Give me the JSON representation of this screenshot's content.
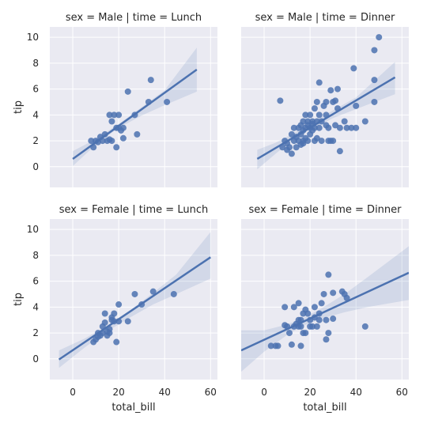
{
  "chart_data": {
    "type": "scatter",
    "xlabel": "total_bill",
    "ylabel": "tip",
    "xlim": [
      -10,
      63
    ],
    "ylim": [
      -1.6,
      10.8
    ],
    "x_ticks": [
      0,
      20,
      40,
      60
    ],
    "y_ticks": [
      0,
      2,
      4,
      6,
      8,
      10
    ],
    "grid": true,
    "color": "#4c72b0",
    "background": "#eaeaf2",
    "facets": [
      {
        "title": "sex = Male | time = Lunch",
        "fit": {
          "x0": 0,
          "y0": 0.6,
          "x1": 54,
          "y1": 7.5
        },
        "ci": {
          "lower": [
            [
              0,
              0.05
            ],
            [
              7,
              1.2
            ],
            [
              14,
              2.25
            ],
            [
              20,
              3.0
            ],
            [
              30,
              3.95
            ],
            [
              40,
              4.75
            ],
            [
              54,
              5.8
            ]
          ],
          "upper": [
            [
              0,
              1.2
            ],
            [
              7,
              1.85
            ],
            [
              14,
              2.6
            ],
            [
              20,
              3.3
            ],
            [
              30,
              4.6
            ],
            [
              40,
              5.9
            ],
            [
              54,
              9.2
            ]
          ]
        },
        "points": [
          [
            8,
            2
          ],
          [
            9,
            1.5
          ],
          [
            10,
            2
          ],
          [
            11,
            1.9
          ],
          [
            12,
            2.3
          ],
          [
            13,
            2
          ],
          [
            14,
            2.5
          ],
          [
            15,
            2
          ],
          [
            16,
            2.1
          ],
          [
            16,
            4
          ],
          [
            17,
            2
          ],
          [
            17,
            3.5
          ],
          [
            18,
            4
          ],
          [
            19,
            1.5
          ],
          [
            19,
            3
          ],
          [
            20,
            4
          ],
          [
            20,
            3
          ],
          [
            21,
            2.8
          ],
          [
            22,
            3
          ],
          [
            22,
            2.2
          ],
          [
            24,
            5.8
          ],
          [
            27,
            4
          ],
          [
            28,
            2.5
          ],
          [
            33,
            5
          ],
          [
            34,
            6.7
          ],
          [
            41,
            5
          ]
        ]
      },
      {
        "title": "sex = Male | time = Dinner",
        "fit": {
          "x0": -3,
          "y0": 0.6,
          "x1": 57,
          "y1": 6.9
        },
        "ci": {
          "lower": [
            [
              -3,
              -0.2
            ],
            [
              5,
              1.0
            ],
            [
              12,
              2.0
            ],
            [
              20,
              2.85
            ],
            [
              30,
              3.75
            ],
            [
              40,
              4.45
            ],
            [
              57,
              5.6
            ]
          ],
          "upper": [
            [
              -3,
              1.3
            ],
            [
              5,
              1.85
            ],
            [
              12,
              2.5
            ],
            [
              20,
              3.35
            ],
            [
              30,
              4.35
            ],
            [
              40,
              5.35
            ],
            [
              57,
              8.1
            ]
          ]
        },
        "points": [
          [
            7,
            5.1
          ],
          [
            8,
            1.5
          ],
          [
            9,
            2
          ],
          [
            10,
            1.3
          ],
          [
            10,
            1.8
          ],
          [
            11,
            1.5
          ],
          [
            12,
            2.5
          ],
          [
            12,
            1
          ],
          [
            13,
            2
          ],
          [
            13,
            3
          ],
          [
            14,
            2.3
          ],
          [
            14,
            1.5
          ],
          [
            15,
            3
          ],
          [
            15,
            2
          ],
          [
            16,
            3.2
          ],
          [
            16,
            2.5
          ],
          [
            16,
            1.7
          ],
          [
            17,
            3.5
          ],
          [
            17,
            2.8
          ],
          [
            17,
            2
          ],
          [
            17,
            1.8
          ],
          [
            18,
            4
          ],
          [
            18,
            3
          ],
          [
            18,
            2.2
          ],
          [
            19,
            3.5
          ],
          [
            19,
            3.2
          ],
          [
            19,
            2
          ],
          [
            20,
            3
          ],
          [
            20,
            2.5
          ],
          [
            20,
            4
          ],
          [
            21,
            3.5
          ],
          [
            21,
            2.8
          ],
          [
            21,
            3.3
          ],
          [
            22,
            2
          ],
          [
            22,
            4.5
          ],
          [
            22,
            3
          ],
          [
            23,
            5
          ],
          [
            23,
            3.5
          ],
          [
            23,
            2.2
          ],
          [
            24,
            6.5
          ],
          [
            24,
            4
          ],
          [
            24,
            3
          ],
          [
            25,
            2
          ],
          [
            25,
            3.5
          ],
          [
            26,
            4.7
          ],
          [
            27,
            5
          ],
          [
            27,
            3.2
          ],
          [
            27,
            4
          ],
          [
            28,
            3
          ],
          [
            28,
            2
          ],
          [
            29,
            5.9
          ],
          [
            29,
            2
          ],
          [
            30,
            5
          ],
          [
            30,
            2
          ],
          [
            31,
            5.1
          ],
          [
            31,
            3.2
          ],
          [
            32,
            6
          ],
          [
            32,
            4.5
          ],
          [
            33,
            1.2
          ],
          [
            33,
            3
          ],
          [
            35,
            3.5
          ],
          [
            36,
            3
          ],
          [
            38,
            3
          ],
          [
            39,
            7.6
          ],
          [
            40,
            3
          ],
          [
            40,
            4.7
          ],
          [
            44,
            3.5
          ],
          [
            48,
            9
          ],
          [
            48,
            6.7
          ],
          [
            48,
            5
          ],
          [
            50,
            10
          ]
        ]
      },
      {
        "title": "sex = Female | time = Lunch",
        "fit": {
          "x0": -6,
          "y0": -0.05,
          "x1": 60,
          "y1": 7.85
        },
        "ci": {
          "lower": [
            [
              -6,
              -0.7
            ],
            [
              5,
              0.85
            ],
            [
              12,
              1.75
            ],
            [
              18,
              2.45
            ],
            [
              25,
              3.2
            ],
            [
              35,
              4.2
            ],
            [
              45,
              5.0
            ],
            [
              60,
              6.2
            ]
          ],
          "upper": [
            [
              -6,
              0.65
            ],
            [
              5,
              1.55
            ],
            [
              12,
              2.25
            ],
            [
              18,
              2.95
            ],
            [
              25,
              3.75
            ],
            [
              35,
              5.1
            ],
            [
              45,
              6.5
            ],
            [
              60,
              9.8
            ]
          ]
        },
        "points": [
          [
            9,
            1.3
          ],
          [
            10,
            1.5
          ],
          [
            11,
            2
          ],
          [
            11,
            1.7
          ],
          [
            12,
            1.8
          ],
          [
            13,
            2
          ],
          [
            13,
            2.5
          ],
          [
            14,
            2.8
          ],
          [
            14,
            3.5
          ],
          [
            15,
            1.8
          ],
          [
            15,
            2.1
          ],
          [
            16,
            2
          ],
          [
            16,
            2.3
          ],
          [
            17,
            3
          ],
          [
            17,
            3.2
          ],
          [
            18,
            2.9
          ],
          [
            18,
            3.5
          ],
          [
            19,
            1.3
          ],
          [
            20,
            2.9
          ],
          [
            20,
            4.2
          ],
          [
            24,
            2.9
          ],
          [
            27,
            5
          ],
          [
            30,
            4.2
          ],
          [
            35,
            5.2
          ],
          [
            44,
            5
          ]
        ]
      },
      {
        "title": "sex = Female | time = Dinner",
        "fit": {
          "x0": -10,
          "y0": 0.65,
          "x1": 63,
          "y1": 6.65
        },
        "ci": {
          "lower": [
            [
              -10,
              -1.0
            ],
            [
              0,
              0.55
            ],
            [
              10,
              1.85
            ],
            [
              17,
              2.55
            ],
            [
              25,
              3.1
            ],
            [
              35,
              3.6
            ],
            [
              45,
              4.0
            ],
            [
              63,
              4.55
            ]
          ],
          "upper": [
            [
              -10,
              2.2
            ],
            [
              0,
              2.2
            ],
            [
              10,
              2.65
            ],
            [
              17,
              3.15
            ],
            [
              25,
              3.9
            ],
            [
              35,
              5.0
            ],
            [
              45,
              6.3
            ],
            [
              63,
              8.7
            ]
          ]
        },
        "points": [
          [
            3,
            1
          ],
          [
            5,
            1
          ],
          [
            6,
            1
          ],
          [
            9,
            4
          ],
          [
            9,
            2.6
          ],
          [
            10,
            2.5
          ],
          [
            11,
            2
          ],
          [
            12,
            1.1
          ],
          [
            13,
            2.5
          ],
          [
            13,
            4
          ],
          [
            14,
            2.7
          ],
          [
            15,
            2.5
          ],
          [
            15,
            4.3
          ],
          [
            15,
            3
          ],
          [
            16,
            1
          ],
          [
            16,
            2.5
          ],
          [
            16,
            3
          ],
          [
            17,
            2
          ],
          [
            17,
            3.5
          ],
          [
            18,
            2
          ],
          [
            18,
            3.8
          ],
          [
            19,
            3.5
          ],
          [
            20,
            2.5
          ],
          [
            20,
            3
          ],
          [
            21,
            2.5
          ],
          [
            22,
            4
          ],
          [
            22,
            3.2
          ],
          [
            23,
            2.5
          ],
          [
            24,
            3
          ],
          [
            24,
            3.5
          ],
          [
            25,
            4.3
          ],
          [
            26,
            5
          ],
          [
            27,
            1.5
          ],
          [
            27,
            3
          ],
          [
            28,
            2
          ],
          [
            28,
            6.5
          ],
          [
            30,
            3.1
          ],
          [
            30,
            5.1
          ],
          [
            34,
            5.2
          ],
          [
            35,
            5
          ],
          [
            36,
            4.7
          ],
          [
            44,
            2.5
          ]
        ]
      }
    ]
  }
}
